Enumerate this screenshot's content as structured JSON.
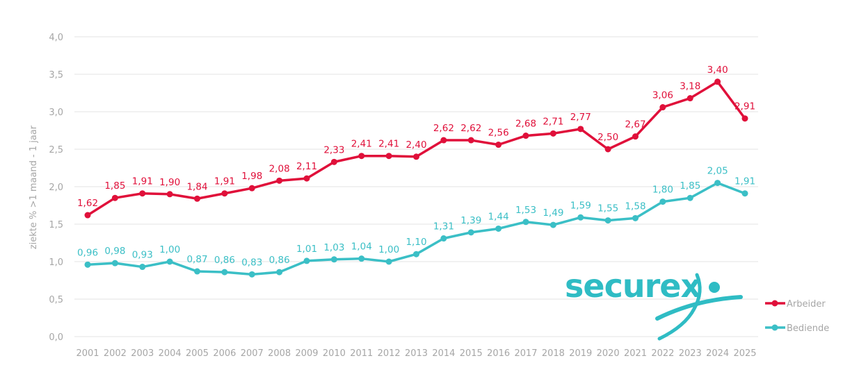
{
  "chart_data": {
    "type": "line",
    "title": "",
    "xlabel": "",
    "ylabel": "ziekte % >1 maand - 1 jaar",
    "ylim": [
      0,
      4
    ],
    "yticks": [
      "0,0",
      "0,5",
      "1,0",
      "1,5",
      "2,0",
      "2,5",
      "3,0",
      "3,5",
      "4,0"
    ],
    "ytick_values": [
      0,
      0.5,
      1,
      1.5,
      2,
      2.5,
      3,
      3.5,
      4
    ],
    "grid": true,
    "legend_position": "right",
    "categories": [
      "2001",
      "2002",
      "2003",
      "2004",
      "2005",
      "2006",
      "2007",
      "2008",
      "2009",
      "2010",
      "2011",
      "2012",
      "2013",
      "2014",
      "2015",
      "2016",
      "2017",
      "2018",
      "2019",
      "2020",
      "2021",
      "2022",
      "2023",
      "2024",
      "2025"
    ],
    "series": [
      {
        "name": "Arbeider",
        "color": "#e0103a",
        "values": [
          1.62,
          1.85,
          1.91,
          1.9,
          1.84,
          1.91,
          1.98,
          2.08,
          2.11,
          2.33,
          2.41,
          2.41,
          2.4,
          2.62,
          2.62,
          2.56,
          2.68,
          2.71,
          2.77,
          2.5,
          2.67,
          3.06,
          3.18,
          3.4,
          2.91
        ],
        "labels": [
          "1,62",
          "1,85",
          "1,91",
          "1,90",
          "1,84",
          "1,91",
          "1,98",
          "2,08",
          "2,11",
          "2,33",
          "2,41",
          "2,41",
          "2,40",
          "2,62",
          "2,62",
          "2,56",
          "2,68",
          "2,71",
          "2,77",
          "2,50",
          "2,67",
          "3,06",
          "3,18",
          "3,40",
          "2,91"
        ]
      },
      {
        "name": "Bediende",
        "color": "#3bbfc6",
        "values": [
          0.96,
          0.98,
          0.93,
          1.0,
          0.87,
          0.86,
          0.83,
          0.86,
          1.01,
          1.03,
          1.04,
          1.0,
          1.1,
          1.31,
          1.39,
          1.44,
          1.53,
          1.49,
          1.59,
          1.55,
          1.58,
          1.8,
          1.85,
          2.05,
          1.91
        ],
        "labels": [
          "0,96",
          "0,98",
          "0,93",
          "1,00",
          "0,87",
          "0,86",
          "0,83",
          "0,86",
          "1,01",
          "1,03",
          "1,04",
          "1,00",
          "1,10",
          "1,31",
          "1,39",
          "1,44",
          "1,53",
          "1,49",
          "1,59",
          "1,55",
          "1,58",
          "1,80",
          "1,85",
          "2,05",
          "1,91"
        ]
      }
    ]
  },
  "logo": {
    "text": "securex",
    "color": "#2fbcc4"
  }
}
